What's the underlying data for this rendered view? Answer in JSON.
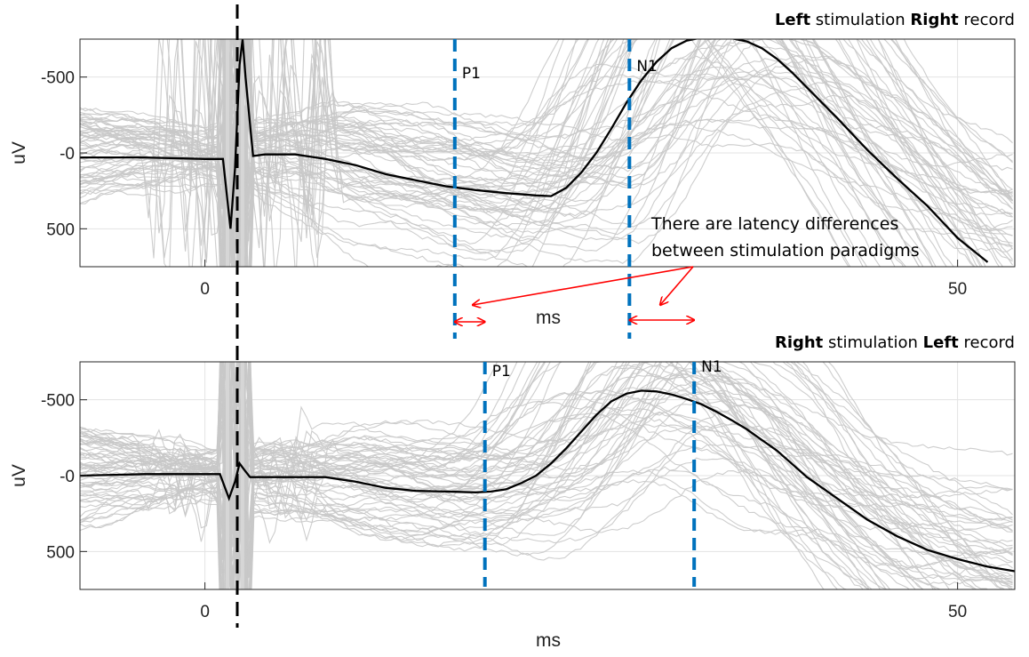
{
  "chart_data": [
    {
      "type": "line",
      "title": {
        "parts": [
          {
            "text": "Left",
            "bold": true
          },
          {
            "text": " stimulation ",
            "bold": false
          },
          {
            "text": "Right",
            "bold": true
          },
          {
            "text": " record",
            "bold": false
          }
        ]
      },
      "xlabel": "ms",
      "ylabel": "uV",
      "xlim": [
        -8.3,
        53.8
      ],
      "ylim": [
        750,
        -750
      ],
      "y_reversed": true,
      "xticks": [
        {
          "value": 0,
          "label": "0"
        },
        {
          "value": 50,
          "label": "50"
        }
      ],
      "yticks": [
        {
          "value": -500,
          "label": "-500"
        },
        {
          "value": 0,
          "label": "-0"
        },
        {
          "value": 500,
          "label": "500"
        }
      ],
      "grid": true,
      "stimulus_artifact_ms": [
        1.5,
        2.5
      ],
      "average": {
        "name": "",
        "color": "#000000",
        "x": [
          -8.3,
          -4,
          0,
          1.2,
          1.7,
          2.0,
          2.3,
          2.5,
          2.7,
          3.2,
          4,
          6,
          8,
          10,
          12,
          14,
          16,
          18,
          20,
          22,
          23,
          24,
          25,
          26,
          27,
          28,
          29,
          30,
          31,
          32,
          33,
          34,
          35,
          36,
          37,
          38,
          39,
          40,
          41,
          42,
          44,
          46,
          48,
          50,
          52
        ],
        "y": [
          30,
          30,
          40,
          40,
          500,
          100,
          -580,
          -750,
          -500,
          20,
          10,
          10,
          40,
          80,
          140,
          180,
          220,
          245,
          265,
          280,
          285,
          230,
          130,
          0,
          -160,
          -330,
          -480,
          -600,
          -690,
          -740,
          -760,
          -760,
          -755,
          -735,
          -690,
          -620,
          -530,
          -430,
          -330,
          -230,
          -20,
          170,
          350,
          560,
          720
        ]
      },
      "markers": [
        {
          "label": "P1",
          "x_ms": 16.6
        },
        {
          "label": "N1",
          "x_ms": 28.2
        }
      ],
      "trace_count": 60
    },
    {
      "type": "line",
      "title": {
        "parts": [
          {
            "text": "Right",
            "bold": true
          },
          {
            "text": " stimulation ",
            "bold": false
          },
          {
            "text": "Left",
            "bold": true
          },
          {
            "text": " record",
            "bold": false
          }
        ]
      },
      "xlabel": "ms",
      "ylabel": "uV",
      "xlim": [
        -8.3,
        53.8
      ],
      "ylim": [
        750,
        -750
      ],
      "y_reversed": true,
      "xticks": [
        {
          "value": 0,
          "label": "0"
        },
        {
          "value": 50,
          "label": "50"
        }
      ],
      "yticks": [
        {
          "value": -500,
          "label": "-500"
        },
        {
          "value": 0,
          "label": "-0"
        },
        {
          "value": 500,
          "label": "500"
        }
      ],
      "grid": true,
      "stimulus_artifact_ms": [
        1.5,
        2.5
      ],
      "average": {
        "name": "",
        "color": "#000000",
        "x": [
          -8.3,
          -4,
          0,
          1.0,
          1.6,
          2.0,
          2.3,
          2.6,
          3.0,
          4,
          6,
          8,
          10,
          12,
          14,
          16,
          18,
          19,
          20,
          21,
          22,
          23,
          24,
          25,
          26,
          27,
          28,
          29,
          30,
          31,
          32,
          33,
          34,
          35,
          36,
          37,
          38,
          40,
          42,
          44,
          46,
          48,
          50,
          52,
          53.8
        ],
        "y": [
          0,
          -10,
          -10,
          -10,
          150,
          40,
          -80,
          -40,
          10,
          10,
          10,
          10,
          40,
          80,
          100,
          105,
          110,
          105,
          90,
          50,
          0,
          -80,
          -180,
          -290,
          -400,
          -490,
          -540,
          -560,
          -555,
          -535,
          -505,
          -470,
          -420,
          -365,
          -305,
          -235,
          -165,
          10,
          150,
          290,
          400,
          490,
          550,
          600,
          630
        ]
      },
      "markers": [
        {
          "label": "P1",
          "x_ms": 18.6
        },
        {
          "label": "N1",
          "x_ms": 32.5
        }
      ],
      "trace_count": 60
    }
  ],
  "annotation": {
    "lines": [
      "There are latency differences",
      "between stimulation paradigms"
    ],
    "color": "#ff0000"
  },
  "colors": {
    "marker": "#0072bd",
    "average": "#000000",
    "trace": "#c8c8c8",
    "grid": "#e3e3e3",
    "stimulus": "#000000",
    "arrow": "#ff0000"
  }
}
